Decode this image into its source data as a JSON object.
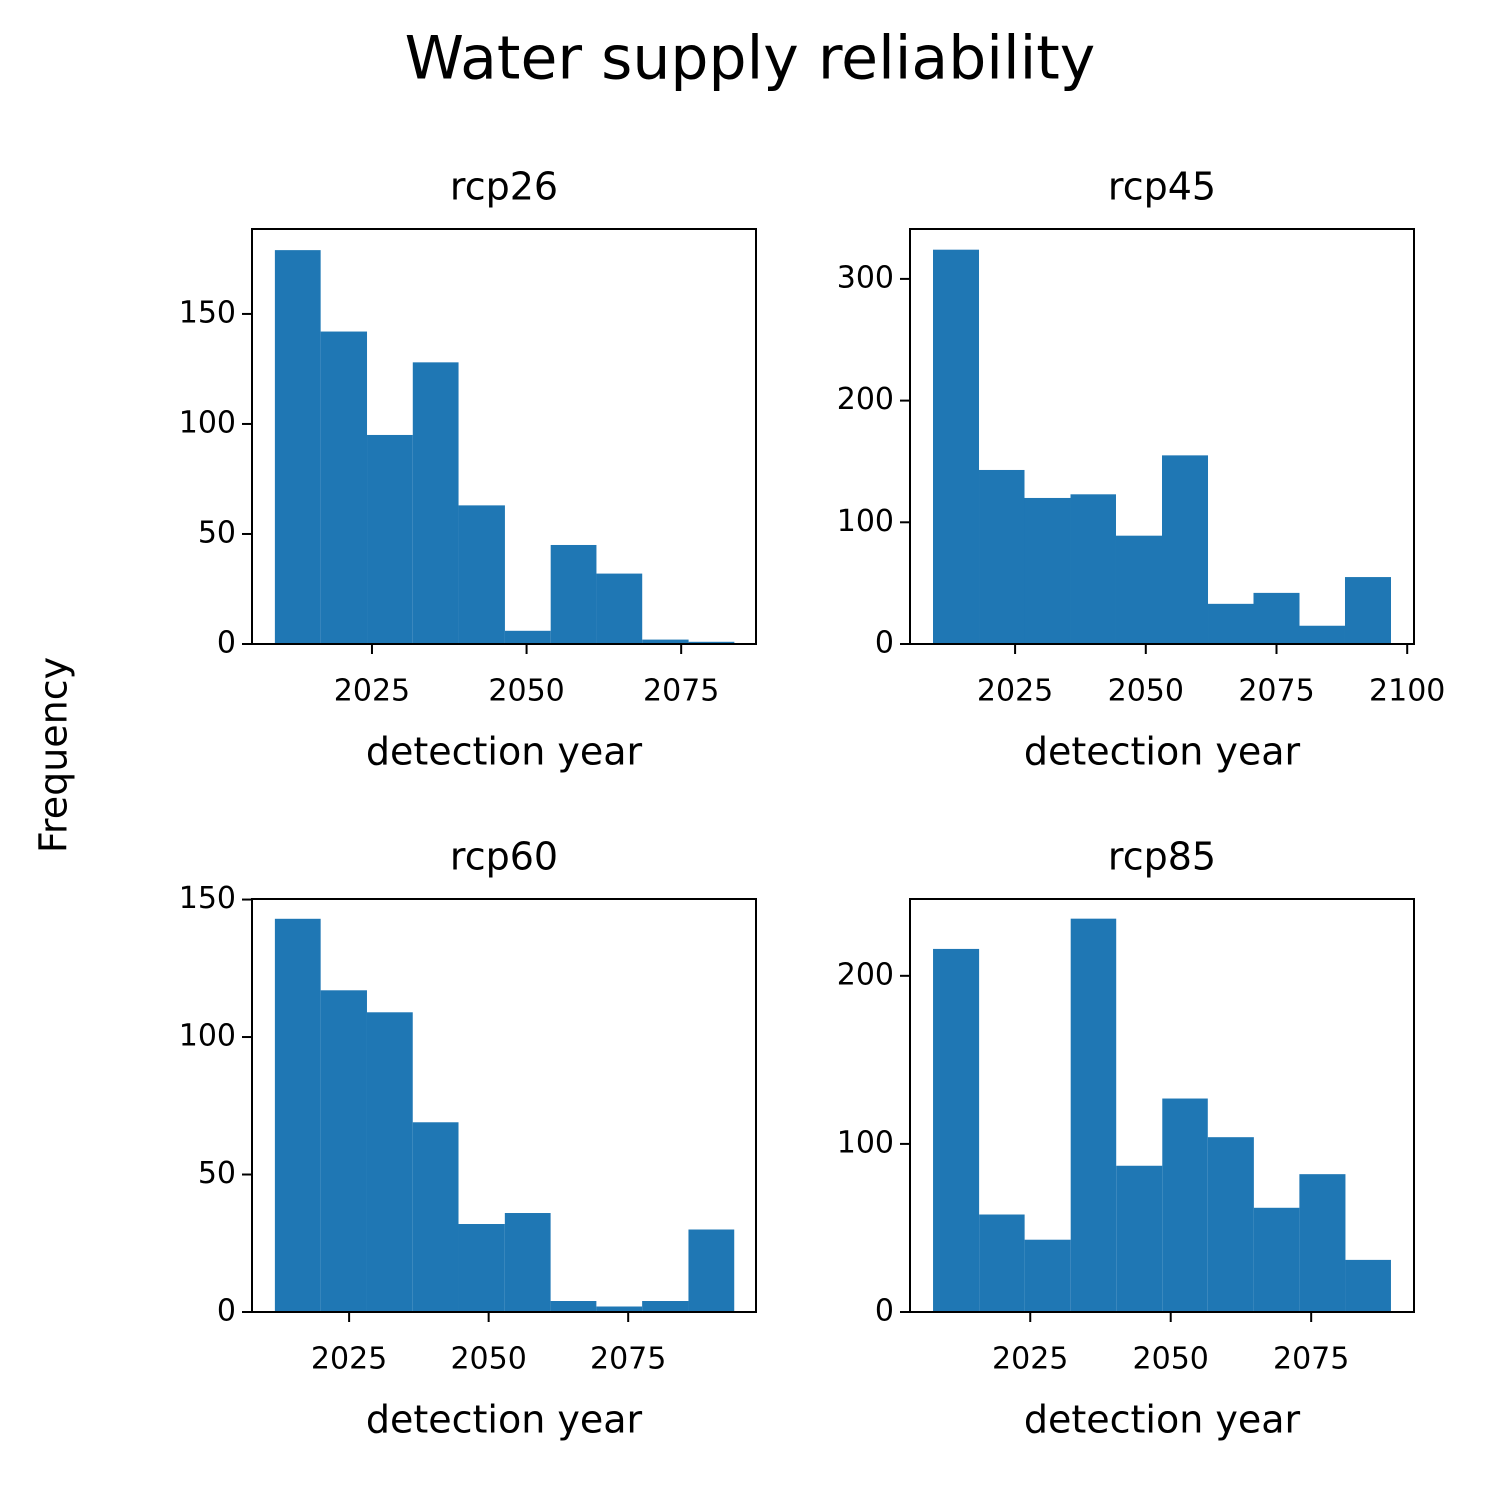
{
  "title": "Water supply reliability",
  "ylabel": "Frequency",
  "chart_data": [
    {
      "type": "histogram",
      "title": "rcp26",
      "xlabel": "detection year",
      "color": "#1f77b4",
      "bins": [
        2009.3,
        2016.7,
        2024.2,
        2031.6,
        2039.0,
        2046.5,
        2053.9,
        2061.3,
        2068.7,
        2076.2,
        2083.6
      ],
      "values": [
        179,
        142,
        95,
        128,
        63,
        6,
        45,
        32,
        2,
        1
      ],
      "xlim": [
        2005.6,
        2087.1
      ],
      "ylim": [
        0,
        188.6
      ],
      "xticks": [
        2025,
        2050,
        2075
      ],
      "yticks": [
        0,
        50,
        100,
        150
      ]
    },
    {
      "type": "histogram",
      "title": "rcp45",
      "xlabel": "detection year",
      "color": "#1f77b4",
      "bins": [
        2009.3,
        2018.1,
        2026.8,
        2035.6,
        2044.3,
        2053.1,
        2061.9,
        2070.6,
        2079.4,
        2088.1,
        2096.9
      ],
      "values": [
        324,
        143,
        120,
        123,
        89,
        155,
        33,
        42,
        15,
        55
      ],
      "xlim": [
        2004.9,
        2101.3
      ],
      "ylim": [
        0,
        341
      ],
      "xticks": [
        2025,
        2050,
        2075,
        2100
      ],
      "yticks": [
        0,
        100,
        200,
        300
      ]
    },
    {
      "type": "histogram",
      "title": "rcp60",
      "xlabel": "detection year",
      "color": "#1f77b4",
      "bins": [
        2011.7,
        2019.9,
        2028.2,
        2036.4,
        2044.6,
        2052.9,
        2061.1,
        2069.3,
        2077.5,
        2085.8,
        2094.0
      ],
      "values": [
        143,
        117,
        109,
        69,
        32,
        36,
        4,
        2,
        4,
        30
      ],
      "xlim": [
        2007.6,
        2097.9
      ],
      "ylim": [
        0,
        150.2
      ],
      "xticks": [
        2025,
        2050,
        2075
      ],
      "yticks": [
        0,
        50,
        100,
        150
      ]
    },
    {
      "type": "histogram",
      "title": "rcp85",
      "xlabel": "detection year",
      "color": "#1f77b4",
      "bins": [
        2007.7,
        2015.9,
        2024.0,
        2032.2,
        2040.3,
        2048.5,
        2056.6,
        2064.8,
        2072.9,
        2081.1,
        2089.2
      ],
      "values": [
        216,
        58,
        43,
        234,
        87,
        127,
        104,
        62,
        82,
        31
      ],
      "xlim": [
        2003.6,
        2093.3
      ],
      "ylim": [
        0,
        245.7
      ],
      "xticks": [
        2025,
        2050,
        2075
      ],
      "yticks": [
        0,
        100,
        200
      ]
    }
  ]
}
